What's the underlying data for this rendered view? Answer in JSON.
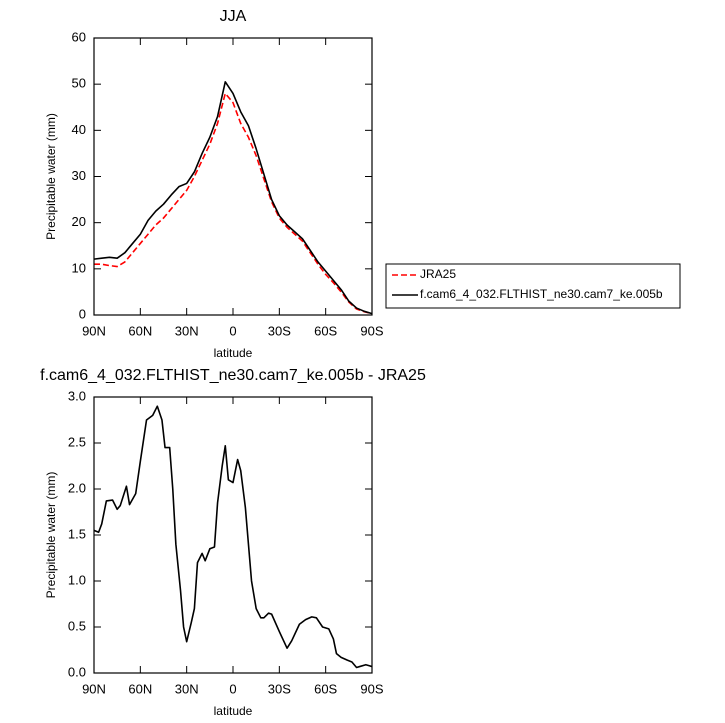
{
  "chart_data": [
    {
      "type": "line",
      "title": "JJA",
      "x_label": "latitude",
      "y_label": "Precipitable water (mm)",
      "x": [
        90,
        85,
        80,
        75,
        70,
        65,
        60,
        55,
        50,
        45,
        40,
        35,
        30,
        25,
        20,
        15,
        10,
        5,
        0,
        -5,
        -10,
        -15,
        -20,
        -25,
        -30,
        -35,
        -40,
        -45,
        -50,
        -55,
        -60,
        -65,
        -70,
        -75,
        -80,
        -85,
        -90
      ],
      "series": [
        {
          "name": "JRA25",
          "color": "#ff0000",
          "dash": true,
          "values": [
            11,
            11,
            10.7,
            10.5,
            11.5,
            13.5,
            15.5,
            17.5,
            19.5,
            21,
            23,
            25,
            27,
            30,
            33.5,
            37,
            41.5,
            48,
            46,
            41.5,
            38.5,
            34.5,
            29.5,
            24.5,
            21,
            19,
            17.5,
            16,
            13.5,
            11,
            8.8,
            7,
            5,
            2.8,
            1.3,
            0.7,
            0.3
          ]
        },
        {
          "name": "f.cam6_4_032.FLTHIST_ne30.cam7_ke.005b",
          "color": "#000000",
          "dash": false,
          "values": [
            12.1,
            12.3,
            12.5,
            12.3,
            13.5,
            15.5,
            17.5,
            20.5,
            22.5,
            24,
            26,
            27.8,
            28.5,
            31,
            35,
            38.5,
            43,
            50.5,
            48,
            44,
            41,
            36,
            30.5,
            25,
            21.5,
            19.5,
            18,
            16.5,
            14,
            11.5,
            9.5,
            7.5,
            5.5,
            3,
            1.5,
            0.8,
            0.3
          ]
        }
      ],
      "xlim": [
        90,
        -90
      ],
      "xticks": [
        {
          "value": 90,
          "label": "90N"
        },
        {
          "value": 60,
          "label": "60N"
        },
        {
          "value": 30,
          "label": "30N"
        },
        0,
        {
          "value": -30,
          "label": "30S"
        },
        {
          "value": -60,
          "label": "60S"
        },
        {
          "value": -90,
          "label": "90S"
        }
      ],
      "ylim": [
        0,
        60
      ],
      "yticks": [
        0,
        10,
        20,
        30,
        40,
        50,
        60
      ],
      "legend": "right"
    },
    {
      "type": "line",
      "title": "f.cam6_4_032.FLTHIST_ne30.cam7_ke.005b - JRA25",
      "x_label": "latitude",
      "y_label": "Precipitable water (mm)",
      "x": [
        90,
        87,
        85,
        82,
        78,
        75,
        73,
        69,
        67,
        63,
        60,
        56,
        52,
        49,
        46,
        44,
        41,
        39,
        37,
        34,
        32,
        30,
        27,
        25,
        23,
        20,
        18,
        15,
        12,
        10,
        7,
        5,
        3,
        0,
        -3,
        -5,
        -8,
        -12,
        -15,
        -18,
        -20,
        -23,
        -25,
        -30,
        -35,
        -38,
        -43,
        -47,
        -51,
        -54,
        -58,
        -62,
        -65,
        -67,
        -70,
        -74,
        -77,
        -80,
        -82,
        -86,
        -88,
        -90
      ],
      "values": [
        1.55,
        1.53,
        1.62,
        1.87,
        1.88,
        1.78,
        1.82,
        2.03,
        1.83,
        1.95,
        2.3,
        2.75,
        2.8,
        2.9,
        2.75,
        2.45,
        2.45,
        2.0,
        1.4,
        0.9,
        0.5,
        0.34,
        0.55,
        0.7,
        1.2,
        1.3,
        1.22,
        1.35,
        1.37,
        1.85,
        2.25,
        2.47,
        2.1,
        2.07,
        2.32,
        2.2,
        1.8,
        1.0,
        0.7,
        0.6,
        0.6,
        0.65,
        0.64,
        0.45,
        0.27,
        0.35,
        0.53,
        0.58,
        0.61,
        0.6,
        0.5,
        0.48,
        0.37,
        0.21,
        0.17,
        0.14,
        0.12,
        0.06,
        0.07,
        0.09,
        0.08,
        0.07
      ],
      "color": "#000000",
      "xlim": [
        90,
        -90
      ],
      "xticks": [
        {
          "value": 90,
          "label": "90N"
        },
        {
          "value": 60,
          "label": "60N"
        },
        {
          "value": 30,
          "label": "30N"
        },
        0,
        {
          "value": -30,
          "label": "30S"
        },
        {
          "value": -60,
          "label": "60S"
        },
        {
          "value": -90,
          "label": "90S"
        }
      ],
      "ylim": [
        0,
        3
      ],
      "yticks": [
        {
          "value": 0,
          "label": "0.0"
        },
        {
          "value": 0.5,
          "label": "0.5"
        },
        {
          "value": 1,
          "label": "1.0"
        },
        {
          "value": 1.5,
          "label": "1.5"
        },
        {
          "value": 2,
          "label": "2.0"
        },
        {
          "value": 2.5,
          "label": "2.5"
        },
        {
          "value": 3,
          "label": "3.0"
        }
      ]
    }
  ]
}
